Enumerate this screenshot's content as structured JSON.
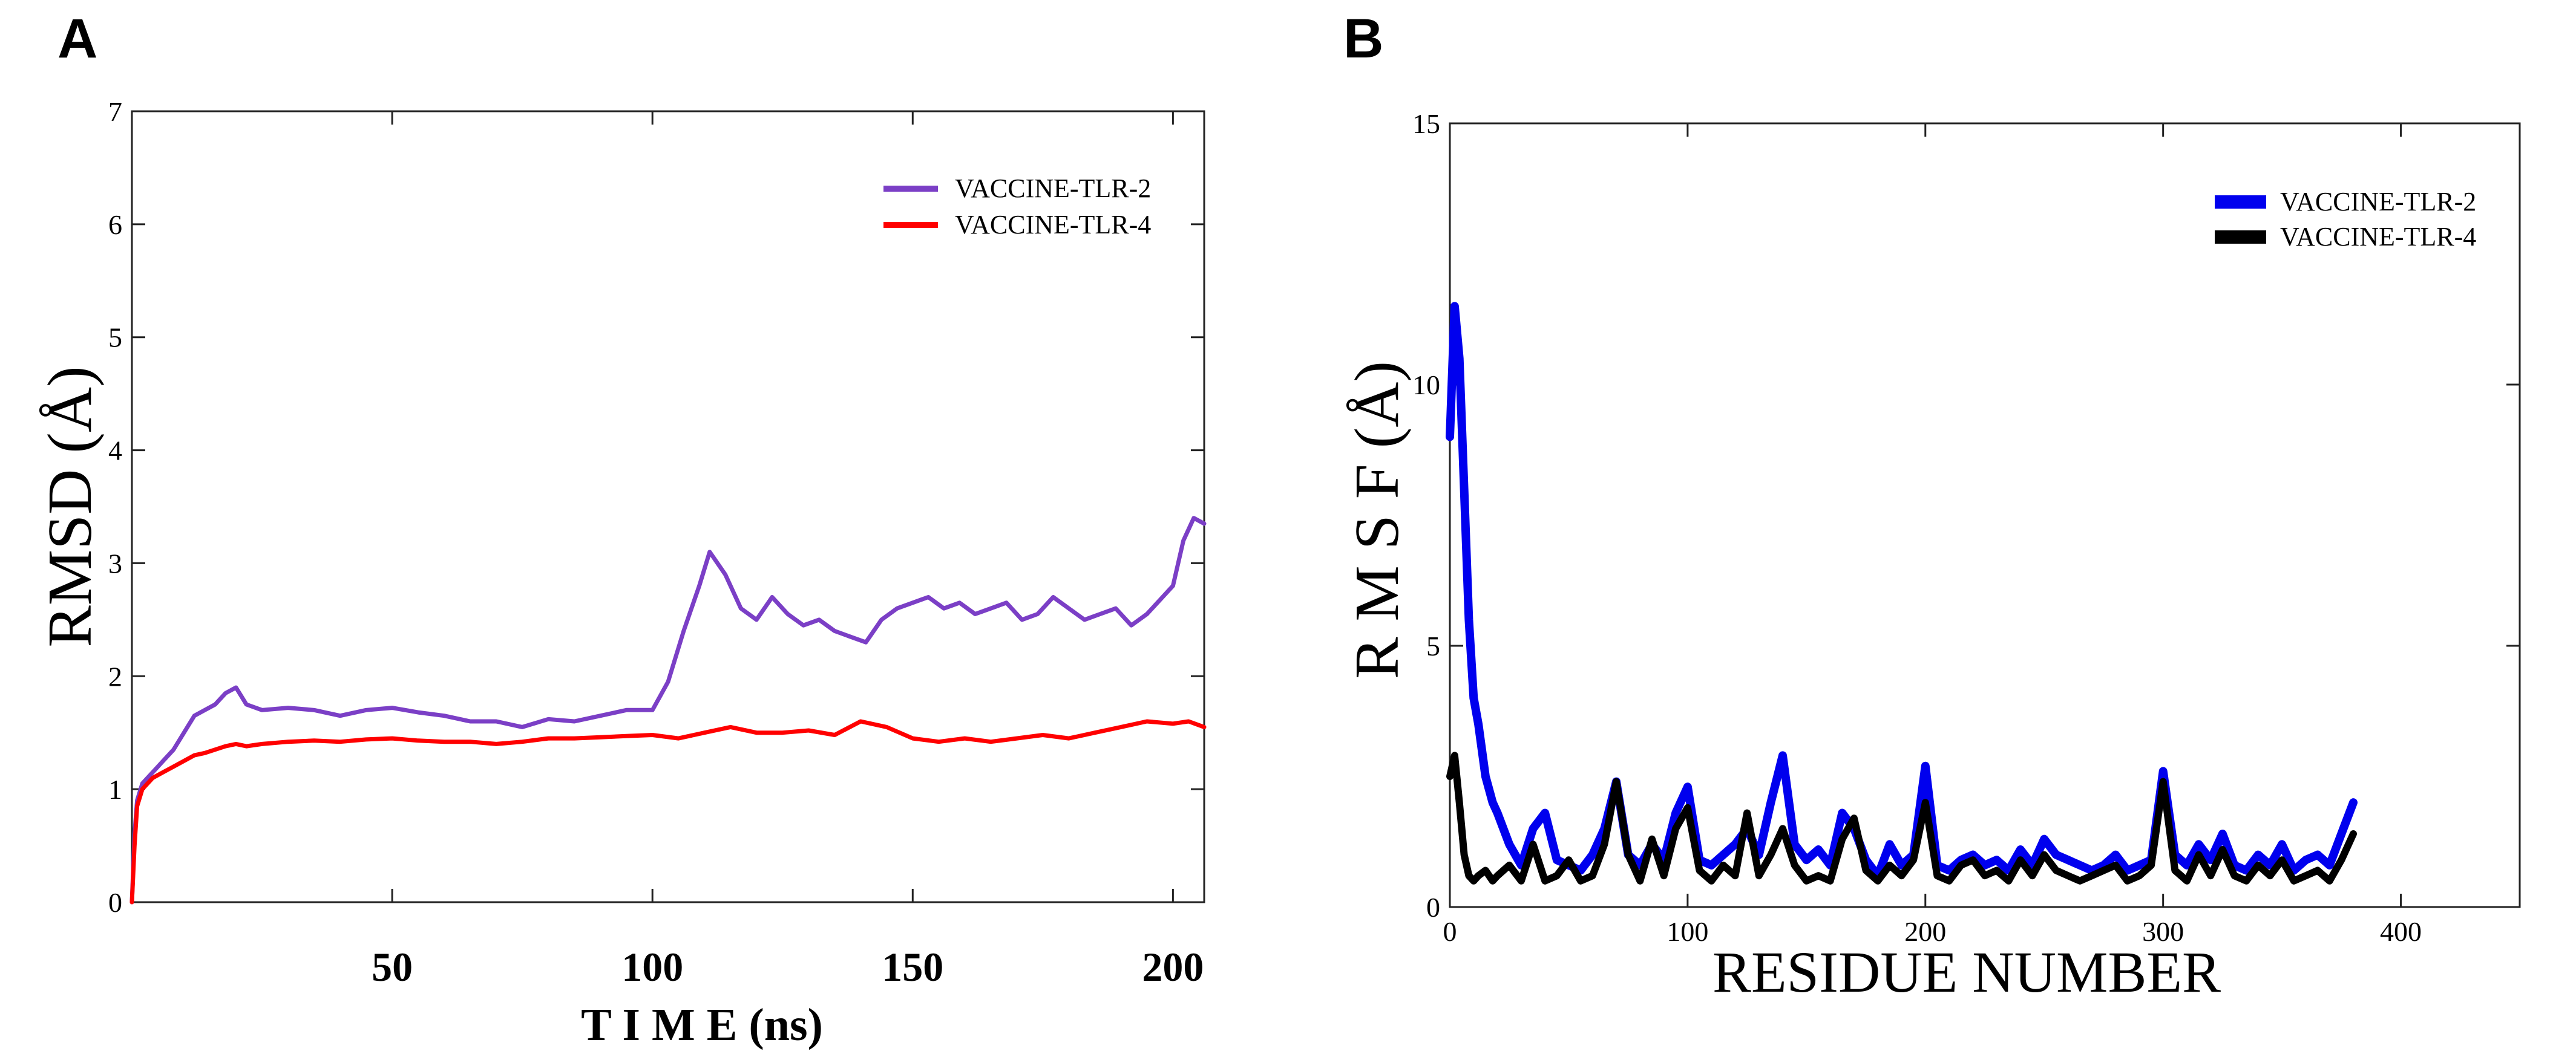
{
  "chart_data": [
    {
      "panel_label": "A",
      "type": "line",
      "title": "",
      "xlabel": "T I M E (ns)",
      "ylabel": "RMSD (Å)",
      "xlim": [
        0,
        206
      ],
      "ylim": [
        0,
        7
      ],
      "x_ticks": [
        50,
        100,
        150,
        200
      ],
      "y_ticks": [
        0,
        1,
        2,
        3,
        4,
        5,
        6,
        7
      ],
      "legend_position": "top-right",
      "series": [
        {
          "name": "VACCINE-TLR-2",
          "color": "#7b3fc6",
          "x": [
            0,
            0.5,
            1,
            2,
            4,
            6,
            8,
            10,
            12,
            14,
            16,
            18,
            20,
            22,
            25,
            30,
            35,
            40,
            45,
            50,
            55,
            60,
            65,
            70,
            75,
            80,
            85,
            90,
            95,
            100,
            103,
            106,
            109,
            111,
            114,
            117,
            120,
            123,
            126,
            129,
            132,
            135,
            138,
            141,
            144,
            147,
            150,
            153,
            156,
            159,
            162,
            165,
            168,
            171,
            174,
            177,
            180,
            183,
            186,
            189,
            192,
            195,
            198,
            200,
            202,
            204,
            206
          ],
          "values": [
            0,
            0.6,
            0.9,
            1.05,
            1.15,
            1.25,
            1.35,
            1.5,
            1.65,
            1.7,
            1.75,
            1.85,
            1.9,
            1.75,
            1.7,
            1.72,
            1.7,
            1.65,
            1.7,
            1.72,
            1.68,
            1.65,
            1.6,
            1.6,
            1.55,
            1.62,
            1.6,
            1.65,
            1.7,
            1.7,
            1.95,
            2.4,
            2.8,
            3.1,
            2.9,
            2.6,
            2.5,
            2.7,
            2.55,
            2.45,
            2.5,
            2.4,
            2.35,
            2.3,
            2.5,
            2.6,
            2.65,
            2.7,
            2.6,
            2.65,
            2.55,
            2.6,
            2.65,
            2.5,
            2.55,
            2.7,
            2.6,
            2.5,
            2.55,
            2.6,
            2.45,
            2.55,
            2.7,
            2.8,
            3.2,
            3.4,
            3.35
          ]
        },
        {
          "name": "VACCINE-TLR-4",
          "color": "#ff0000",
          "x": [
            0,
            0.5,
            1,
            2,
            4,
            6,
            8,
            10,
            12,
            14,
            16,
            18,
            20,
            22,
            25,
            30,
            35,
            40,
            45,
            50,
            55,
            60,
            65,
            70,
            75,
            80,
            85,
            90,
            95,
            100,
            105,
            110,
            115,
            120,
            125,
            130,
            135,
            140,
            145,
            150,
            155,
            160,
            165,
            170,
            175,
            180,
            185,
            190,
            195,
            200,
            203,
            206
          ],
          "values": [
            0,
            0.5,
            0.85,
            1.0,
            1.1,
            1.15,
            1.2,
            1.25,
            1.3,
            1.32,
            1.35,
            1.38,
            1.4,
            1.38,
            1.4,
            1.42,
            1.43,
            1.42,
            1.44,
            1.45,
            1.43,
            1.42,
            1.42,
            1.4,
            1.42,
            1.45,
            1.45,
            1.46,
            1.47,
            1.48,
            1.45,
            1.5,
            1.55,
            1.5,
            1.5,
            1.52,
            1.48,
            1.6,
            1.55,
            1.45,
            1.42,
            1.45,
            1.42,
            1.45,
            1.48,
            1.45,
            1.5,
            1.55,
            1.6,
            1.58,
            1.6,
            1.55
          ]
        }
      ]
    },
    {
      "panel_label": "B",
      "type": "line",
      "title": "",
      "xlabel": "RESIDUE  NUMBER",
      "ylabel": "R M S F (Å)",
      "xlim": [
        0,
        450
      ],
      "ylim": [
        0,
        15
      ],
      "x_ticks": [
        0,
        100,
        200,
        300,
        400
      ],
      "y_ticks": [
        0,
        5,
        10,
        15
      ],
      "legend_position": "top-right",
      "series": [
        {
          "name": "VACCINE-TLR-2",
          "color": "#0000ee",
          "x": [
            0,
            2,
            4,
            6,
            8,
            10,
            12,
            15,
            18,
            20,
            25,
            30,
            35,
            40,
            45,
            50,
            55,
            60,
            65,
            70,
            75,
            80,
            85,
            90,
            95,
            100,
            105,
            110,
            115,
            120,
            125,
            130,
            135,
            140,
            145,
            150,
            155,
            160,
            165,
            170,
            175,
            180,
            185,
            190,
            195,
            200,
            205,
            210,
            215,
            220,
            225,
            230,
            235,
            240,
            245,
            250,
            255,
            260,
            265,
            270,
            275,
            280,
            285,
            290,
            295,
            300,
            305,
            310,
            315,
            320,
            325,
            330,
            335,
            340,
            345,
            350,
            355,
            360,
            365,
            370,
            375,
            380
          ],
          "values": [
            9.0,
            11.5,
            10.5,
            8.0,
            5.5,
            4.0,
            3.5,
            2.5,
            2.0,
            1.8,
            1.2,
            0.8,
            1.5,
            1.8,
            0.9,
            0.8,
            0.7,
            1.0,
            1.5,
            2.4,
            1.0,
            0.8,
            1.2,
            0.9,
            1.8,
            2.3,
            0.9,
            0.8,
            1.0,
            1.2,
            1.5,
            1.0,
            2.0,
            2.9,
            1.2,
            0.9,
            1.1,
            0.8,
            1.8,
            1.5,
            0.9,
            0.6,
            1.2,
            0.8,
            1.0,
            2.7,
            0.8,
            0.7,
            0.9,
            1.0,
            0.8,
            0.9,
            0.7,
            1.1,
            0.8,
            1.3,
            1.0,
            0.9,
            0.8,
            0.7,
            0.8,
            1.0,
            0.7,
            0.8,
            0.9,
            2.6,
            1.0,
            0.8,
            1.2,
            0.9,
            1.4,
            0.8,
            0.7,
            1.0,
            0.8,
            1.2,
            0.7,
            0.9,
            1.0,
            0.8,
            1.4,
            2.0
          ]
        },
        {
          "name": "VACCINE-TLR-4",
          "color": "#000000",
          "x": [
            0,
            2,
            4,
            6,
            8,
            10,
            12,
            15,
            18,
            20,
            25,
            30,
            35,
            40,
            45,
            50,
            55,
            60,
            65,
            70,
            75,
            80,
            85,
            90,
            95,
            100,
            105,
            110,
            115,
            120,
            125,
            130,
            135,
            140,
            145,
            150,
            155,
            160,
            165,
            170,
            175,
            180,
            185,
            190,
            195,
            200,
            205,
            210,
            215,
            220,
            225,
            230,
            235,
            240,
            245,
            250,
            255,
            260,
            265,
            270,
            275,
            280,
            285,
            290,
            295,
            300,
            305,
            310,
            315,
            320,
            325,
            330,
            335,
            340,
            345,
            350,
            355,
            360,
            365,
            370,
            375,
            380
          ],
          "values": [
            2.5,
            2.9,
            2.0,
            1.0,
            0.6,
            0.5,
            0.6,
            0.7,
            0.5,
            0.6,
            0.8,
            0.5,
            1.2,
            0.5,
            0.6,
            0.9,
            0.5,
            0.6,
            1.2,
            2.4,
            1.0,
            0.5,
            1.3,
            0.6,
            1.5,
            1.9,
            0.7,
            0.5,
            0.8,
            0.6,
            1.8,
            0.6,
            1.0,
            1.5,
            0.8,
            0.5,
            0.6,
            0.5,
            1.3,
            1.7,
            0.7,
            0.5,
            0.8,
            0.6,
            0.9,
            2.0,
            0.6,
            0.5,
            0.8,
            0.9,
            0.6,
            0.7,
            0.5,
            0.9,
            0.6,
            1.0,
            0.7,
            0.6,
            0.5,
            0.6,
            0.7,
            0.8,
            0.5,
            0.6,
            0.8,
            2.4,
            0.7,
            0.5,
            1.0,
            0.6,
            1.1,
            0.6,
            0.5,
            0.8,
            0.6,
            0.9,
            0.5,
            0.6,
            0.7,
            0.5,
            0.9,
            1.4
          ]
        }
      ]
    }
  ]
}
